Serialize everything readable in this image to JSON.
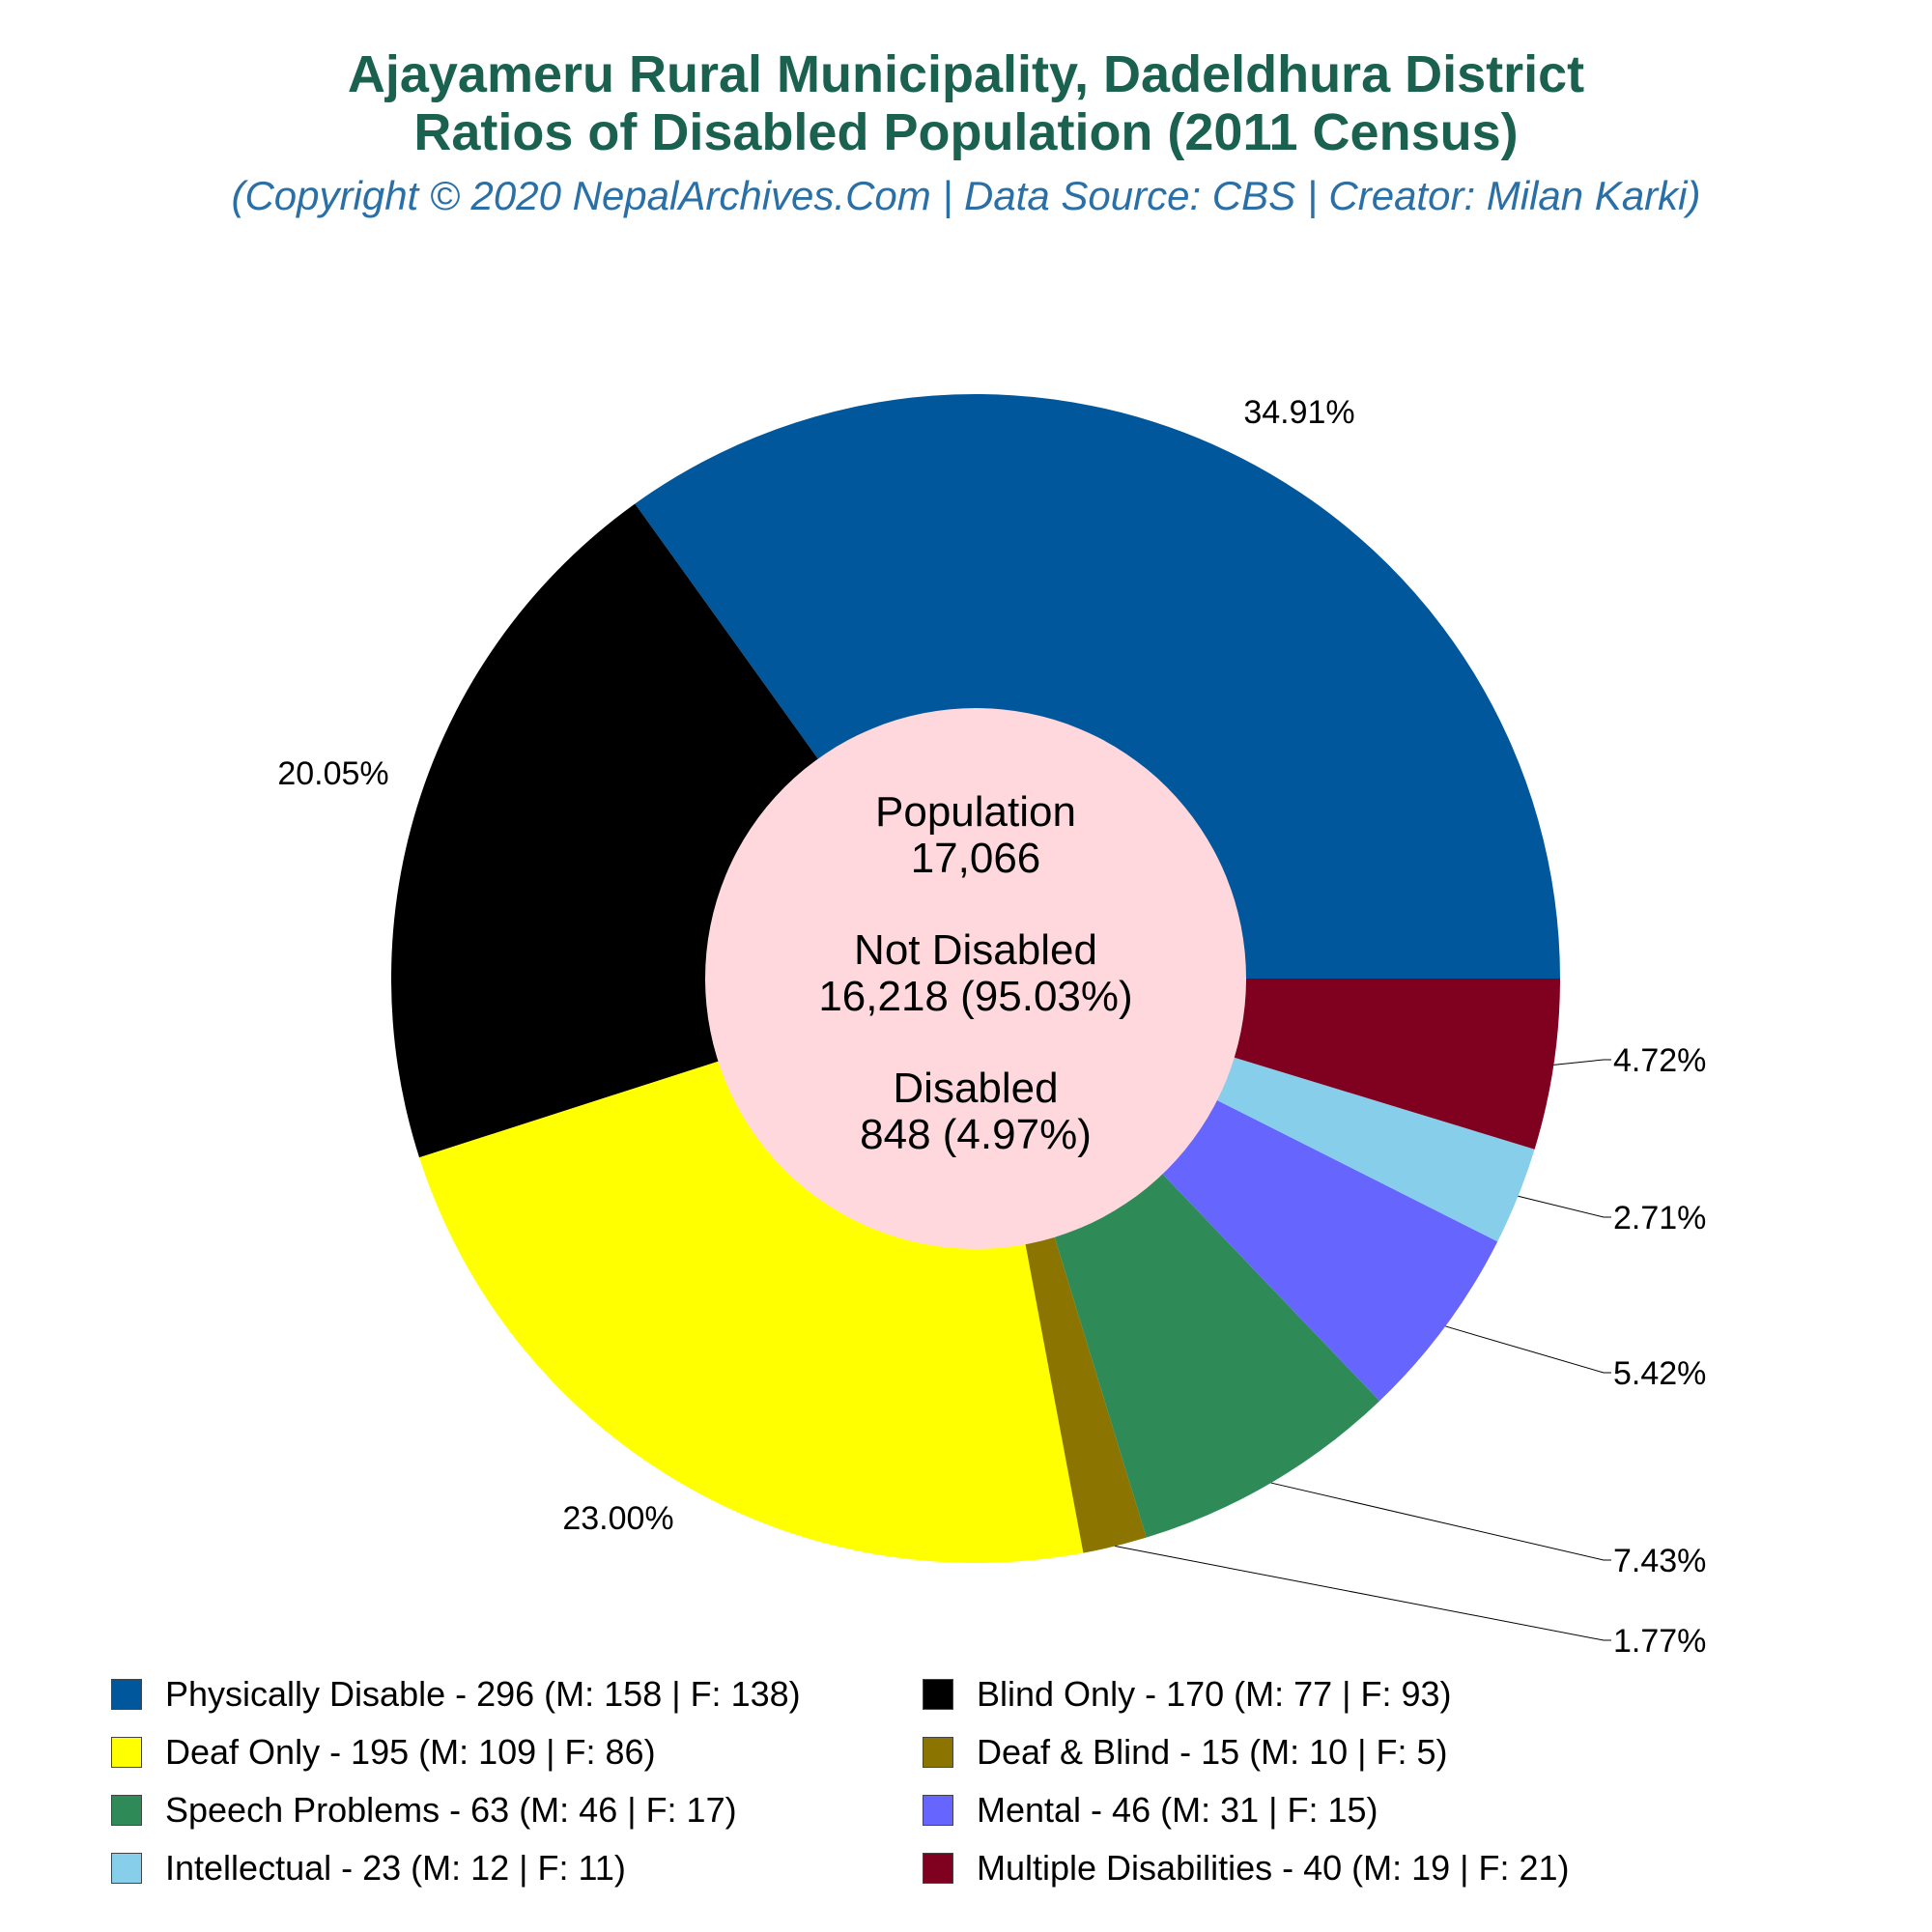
{
  "title_line1": "Ajayameru Rural Municipality, Dadeldhura District",
  "title_line2": "Ratios of Disabled Population (2011 Census)",
  "subtitle": "(Copyright © 2020 NepalArchives.Com | Data Source: CBS | Creator: Milan Karki)",
  "center": {
    "population_label": "Population",
    "population_value": "17,066",
    "not_disabled_label": "Not Disabled",
    "not_disabled_value": "16,218 (95.03%)",
    "disabled_label": "Disabled",
    "disabled_value": "848 (4.97%)"
  },
  "chart_data": {
    "type": "pie",
    "donut": true,
    "slices": [
      {
        "name": "Physically Disable",
        "value": 296,
        "male": 158,
        "female": 138,
        "percent": "34.91%",
        "color": "#01579b",
        "legend": "Physically Disable - 296 (M: 158 | F: 138)"
      },
      {
        "name": "Blind Only",
        "value": 170,
        "male": 77,
        "female": 93,
        "percent": "20.05%",
        "color": "#000000",
        "legend": "Blind Only - 170 (M: 77 | F: 93)"
      },
      {
        "name": "Deaf Only",
        "value": 195,
        "male": 109,
        "female": 86,
        "percent": "23.00%",
        "color": "#ffff00",
        "legend": "Deaf Only - 195 (M: 109 | F: 86)"
      },
      {
        "name": "Deaf & Blind",
        "value": 15,
        "male": 10,
        "female": 5,
        "percent": "1.77%",
        "color": "#8b7500",
        "legend": "Deaf & Blind - 15 (M: 10 | F: 5)"
      },
      {
        "name": "Speech Problems",
        "value": 63,
        "male": 46,
        "female": 17,
        "percent": "7.43%",
        "color": "#2e8b57",
        "legend": "Speech Problems - 63 (M: 46 | F: 17)"
      },
      {
        "name": "Mental",
        "value": 46,
        "male": 31,
        "female": 15,
        "percent": "5.42%",
        "color": "#6666ff",
        "legend": "Mental - 46 (M: 31 | F: 15)"
      },
      {
        "name": "Intellectual",
        "value": 23,
        "male": 12,
        "female": 11,
        "percent": "2.71%",
        "color": "#87ceeb",
        "legend": "Intellectual - 23 (M: 12 | F: 11)"
      },
      {
        "name": "Multiple Disabilities",
        "value": 40,
        "male": 19,
        "female": 21,
        "percent": "4.72%",
        "color": "#800020",
        "legend": "Multiple Disabilities - 40 (M: 19 | F: 21)"
      }
    ],
    "legend_order": [
      "Physically Disable",
      "Blind Only",
      "Deaf Only",
      "Deaf & Blind",
      "Speech Problems",
      "Mental",
      "Intellectual",
      "Multiple Disabilities"
    ],
    "legend_placement": "bottom",
    "center_color": "#ffd8de"
  }
}
